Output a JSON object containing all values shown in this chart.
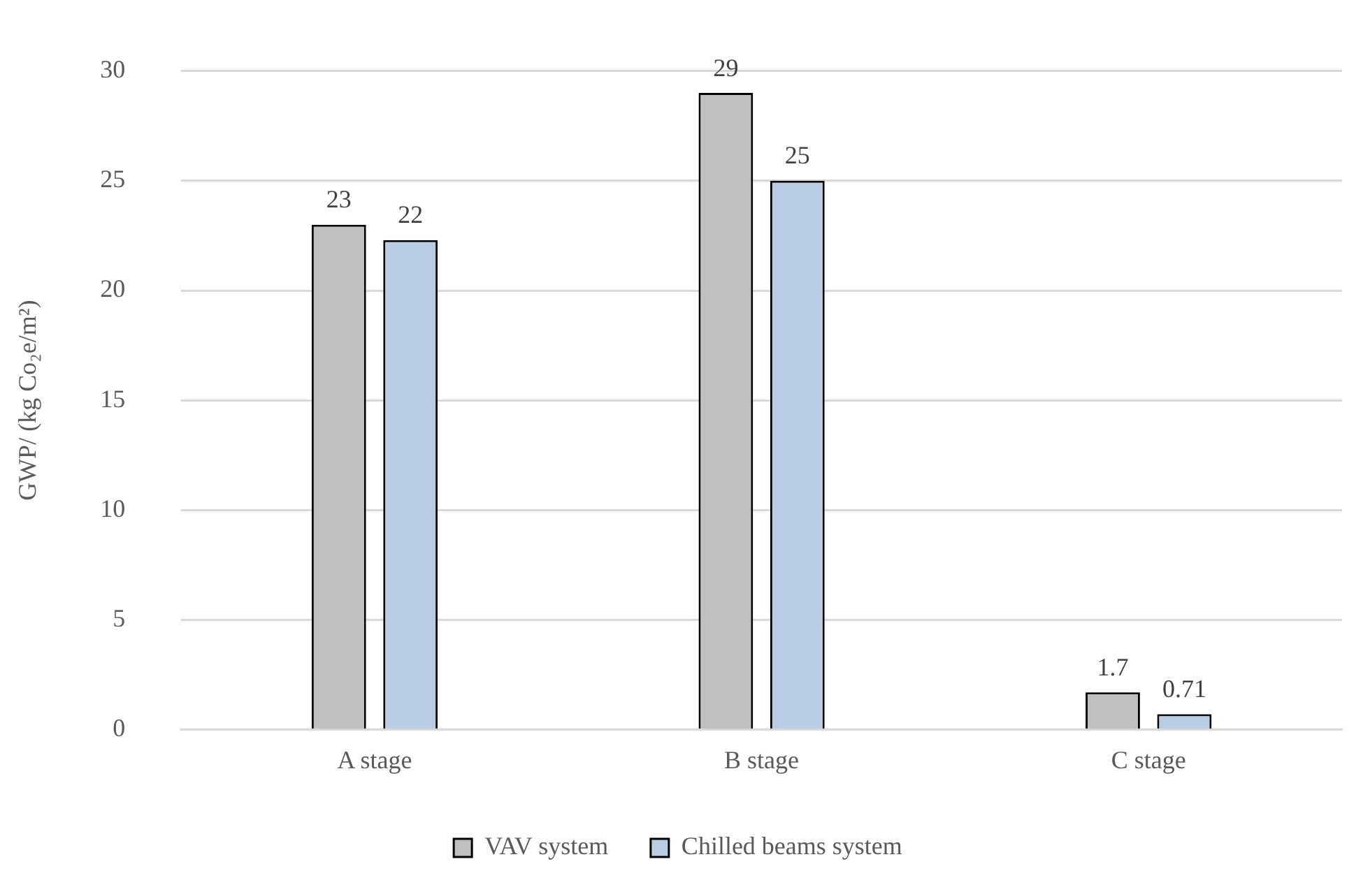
{
  "chart_data": {
    "type": "bar",
    "ylabel": "GWP/ (kg Co₂e/m²)",
    "categories": [
      "A stage",
      "B stage",
      "C stage"
    ],
    "series": [
      {
        "name": "VAV system",
        "color": "#bfbfbf",
        "values": [
          23,
          29,
          1.7
        ],
        "value_labels": [
          "23",
          "29",
          "1.7"
        ]
      },
      {
        "name": "Chilled beams system",
        "color": "#b8cce4",
        "values": [
          22.3,
          25,
          0.71
        ],
        "value_labels": [
          "22",
          "25",
          "0.71"
        ]
      }
    ],
    "ylim": [
      0,
      30
    ],
    "yticks": [
      0,
      5,
      10,
      15,
      20,
      25,
      30
    ],
    "grid": "y",
    "legend": "bottom"
  }
}
